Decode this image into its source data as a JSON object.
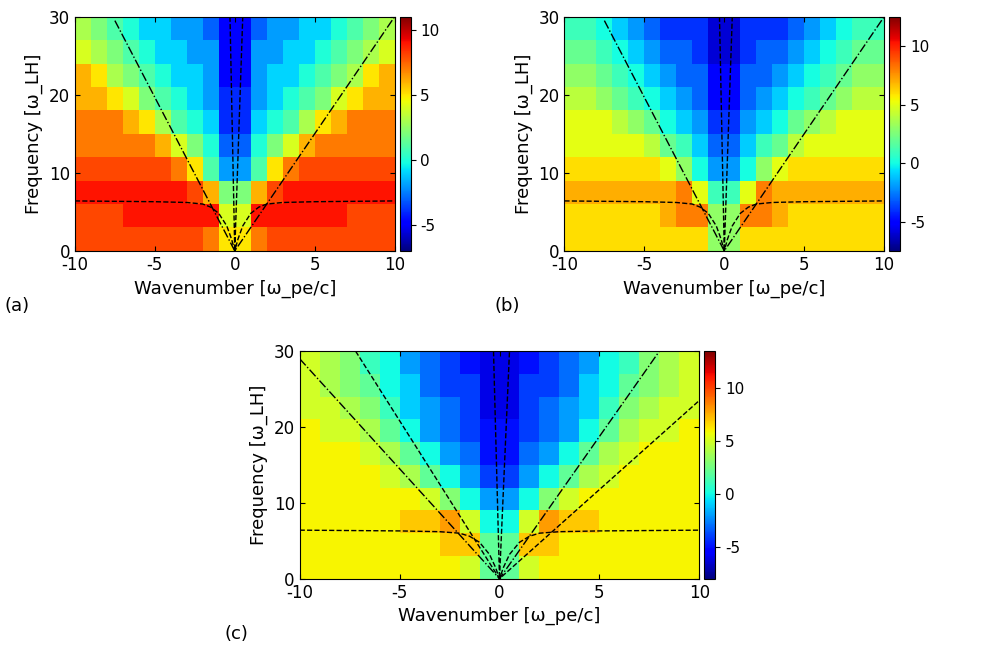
{
  "chart_data": [
    {
      "type": "heatmap",
      "panel_label": "(a)",
      "xlabel": "Wavenumber [ω_pe/c]",
      "ylabel": "Frequency [ω_LH]",
      "xlim": [
        -10,
        10
      ],
      "ylim": [
        0,
        30
      ],
      "xticks": [
        -10,
        -5,
        0,
        5,
        10
      ],
      "yticks": [
        0,
        10,
        20,
        30
      ],
      "x_edges": [
        -10,
        -9,
        -8,
        -7,
        -6,
        -5,
        -4,
        -3,
        -2,
        -1,
        0,
        1,
        2,
        3,
        4,
        5,
        6,
        7,
        8,
        9,
        10
      ],
      "y_edges": [
        0,
        3,
        6,
        9,
        12,
        15,
        18,
        21,
        24,
        27,
        30
      ],
      "cells": [
        [
          8,
          8,
          8,
          8,
          8,
          8,
          8,
          8,
          7,
          5,
          5,
          7,
          8,
          8,
          8,
          8,
          8,
          8,
          8,
          8
        ],
        [
          8,
          8,
          8,
          9,
          9,
          9,
          9,
          9,
          9,
          4,
          4,
          9,
          9,
          9,
          9,
          9,
          9,
          8,
          8,
          8
        ],
        [
          9,
          9,
          9,
          9,
          9,
          9,
          9,
          8,
          6,
          2,
          2,
          6,
          8,
          9,
          9,
          9,
          9,
          9,
          9,
          9
        ],
        [
          8,
          8,
          8,
          8,
          8,
          8,
          7,
          5,
          1,
          -2,
          -2,
          1,
          5,
          7,
          8,
          8,
          8,
          8,
          8,
          8
        ],
        [
          7,
          7,
          7,
          7,
          7,
          6,
          4,
          2,
          0,
          -3,
          -3,
          0,
          2,
          4,
          6,
          7,
          7,
          7,
          7,
          7
        ],
        [
          7,
          7,
          7,
          6,
          5,
          3,
          1,
          0,
          -1,
          -4,
          -4,
          -1,
          0,
          1,
          3,
          5,
          6,
          7,
          7,
          7
        ],
        [
          6,
          6,
          5,
          4,
          2,
          1,
          0,
          -1,
          -2,
          -4,
          -4,
          -2,
          -1,
          0,
          1,
          2,
          4,
          5,
          6,
          6
        ],
        [
          6,
          5,
          3,
          2,
          1,
          0,
          -1,
          -1,
          -2,
          -5,
          -5,
          -2,
          -1,
          -1,
          0,
          1,
          2,
          3,
          5,
          6
        ],
        [
          4,
          3,
          2,
          1,
          0,
          -1,
          -1,
          -2,
          -2,
          -5,
          -5,
          -2,
          -2,
          -1,
          -1,
          0,
          1,
          2,
          3,
          4
        ],
        [
          3,
          2,
          1,
          0,
          -1,
          -1,
          -2,
          -2,
          -3,
          -5,
          -5,
          -3,
          -2,
          -2,
          -1,
          -1,
          0,
          1,
          2,
          3
        ]
      ],
      "colorbar": {
        "range": [
          -7,
          11
        ],
        "ticks": [
          -5,
          0,
          5,
          10
        ]
      },
      "series": [
        {
          "color": "#000000",
          "line_style": "dashed",
          "x": [
            -10,
            -5,
            -3,
            -2,
            -1.5,
            -1,
            -0.5,
            -0.2,
            0,
            0.2,
            0.5,
            1,
            1.5,
            2,
            3,
            5,
            10
          ],
          "values": [
            6.4,
            6.3,
            6.2,
            6.0,
            5.6,
            4.8,
            3.2,
            1.5,
            0,
            1.5,
            3.2,
            4.8,
            5.6,
            6.0,
            6.2,
            6.3,
            6.4
          ]
        },
        {
          "color": "#000000",
          "line_style": "dashdot",
          "x": [
            -7.5,
            0,
            10
          ],
          "values": [
            29.5,
            0,
            30
          ]
        },
        {
          "color": "#000000",
          "line_style": "dashed",
          "x": [
            -0.3,
            0,
            0.5
          ],
          "values": [
            30,
            0,
            30
          ]
        }
      ]
    },
    {
      "type": "heatmap",
      "panel_label": "(b)",
      "xlabel": "Wavenumber [ω_pe/c]",
      "ylabel": "Frequency [ω_LH]",
      "xlim": [
        -10,
        10
      ],
      "ylim": [
        0,
        30
      ],
      "xticks": [
        -10,
        -5,
        0,
        5,
        10
      ],
      "yticks": [
        0,
        10,
        20,
        30
      ],
      "x_edges": [
        -10,
        -9,
        -8,
        -7,
        -6,
        -5,
        -4,
        -3,
        -2,
        -1,
        0,
        1,
        2,
        3,
        4,
        5,
        6,
        7,
        8,
        9,
        10
      ],
      "y_edges": [
        0,
        3,
        6,
        9,
        12,
        15,
        18,
        21,
        24,
        27,
        30
      ],
      "cells": [
        [
          6,
          6,
          6,
          6,
          6,
          6,
          6,
          6,
          6,
          3,
          3,
          6,
          6,
          6,
          6,
          6,
          6,
          6,
          6,
          6
        ],
        [
          6,
          6,
          6,
          6,
          6,
          6,
          7,
          8,
          8,
          3,
          3,
          8,
          8,
          7,
          6,
          6,
          6,
          6,
          6,
          6
        ],
        [
          7,
          7,
          7,
          7,
          7,
          7,
          7,
          8,
          5,
          1,
          1,
          5,
          8,
          7,
          7,
          7,
          7,
          7,
          7,
          7
        ],
        [
          6,
          6,
          6,
          6,
          6,
          6,
          5,
          3,
          0,
          -2,
          -2,
          0,
          3,
          5,
          6,
          6,
          6,
          6,
          6,
          6
        ],
        [
          5,
          5,
          5,
          5,
          5,
          4,
          2,
          1,
          -1,
          -3,
          -3,
          -1,
          1,
          2,
          4,
          5,
          5,
          5,
          5,
          5
        ],
        [
          5,
          5,
          5,
          4,
          3,
          2,
          0,
          -1,
          -2,
          -4,
          -4,
          -2,
          -1,
          0,
          2,
          3,
          4,
          5,
          5,
          5
        ],
        [
          4,
          4,
          3,
          2,
          1,
          0,
          -1,
          -2,
          -3,
          -5,
          -5,
          -3,
          -2,
          -1,
          0,
          1,
          2,
          3,
          4,
          4
        ],
        [
          3,
          3,
          2,
          1,
          0,
          -1,
          -2,
          -3,
          -3,
          -5,
          -5,
          -3,
          -3,
          -2,
          -1,
          0,
          1,
          2,
          3,
          3
        ],
        [
          2,
          2,
          1,
          0,
          -1,
          -2,
          -3,
          -3,
          -4,
          -6,
          -6,
          -4,
          -3,
          -3,
          -2,
          -1,
          0,
          1,
          2,
          2
        ],
        [
          1,
          1,
          0,
          -1,
          -2,
          -3,
          -4,
          -4,
          -4,
          -6,
          -6,
          -4,
          -4,
          -4,
          -3,
          -2,
          -1,
          0,
          1,
          1
        ]
      ],
      "colorbar": {
        "range": [
          -7.5,
          12.5
        ],
        "ticks": [
          -5,
          0,
          5,
          10
        ]
      },
      "series": [
        {
          "color": "#000000",
          "line_style": "dashed",
          "x": [
            -10,
            -5,
            -3,
            -2,
            -1.5,
            -1,
            -0.5,
            -0.2,
            0,
            0.2,
            0.5,
            1,
            1.5,
            2,
            3,
            5,
            10
          ],
          "values": [
            6.4,
            6.3,
            6.2,
            6.0,
            5.6,
            4.8,
            3.2,
            1.5,
            0,
            1.5,
            3.2,
            4.8,
            5.6,
            6.0,
            6.2,
            6.3,
            6.4
          ]
        },
        {
          "color": "#000000",
          "line_style": "dashdot",
          "x": [
            -7.5,
            0,
            10
          ],
          "values": [
            29.5,
            0,
            30
          ]
        },
        {
          "color": "#000000",
          "line_style": "dashed",
          "x": [
            -0.3,
            0,
            0.5
          ],
          "values": [
            30,
            0,
            30
          ]
        }
      ]
    },
    {
      "type": "heatmap",
      "panel_label": "(c)",
      "xlabel": "Wavenumber [ω_pe/c]",
      "ylabel": "Frequency [ω_LH]",
      "xlim": [
        -10,
        10
      ],
      "ylim": [
        0,
        30
      ],
      "xticks": [
        -10,
        -5,
        0,
        5,
        10
      ],
      "yticks": [
        0,
        10,
        20,
        30
      ],
      "x_edges": [
        -10,
        -9,
        -8,
        -7,
        -6,
        -5,
        -4,
        -3,
        -2,
        -1,
        0,
        1,
        2,
        3,
        4,
        5,
        6,
        7,
        8,
        9,
        10
      ],
      "y_edges": [
        0,
        3,
        6,
        9,
        12,
        15,
        18,
        21,
        24,
        27,
        30
      ],
      "cells": [
        [
          6,
          6,
          6,
          6,
          6,
          6,
          6,
          6,
          5,
          2,
          2,
          5,
          6,
          6,
          6,
          6,
          6,
          6,
          6,
          6
        ],
        [
          6,
          6,
          6,
          6,
          6,
          6,
          6,
          7,
          7,
          2,
          2,
          7,
          7,
          6,
          6,
          6,
          6,
          6,
          6,
          6
        ],
        [
          6,
          6,
          6,
          6,
          6,
          7,
          7,
          8,
          5,
          0,
          0,
          5,
          8,
          7,
          7,
          6,
          6,
          6,
          6,
          6
        ],
        [
          6,
          6,
          6,
          6,
          6,
          6,
          5,
          3,
          0,
          -2,
          -2,
          0,
          3,
          5,
          6,
          6,
          6,
          6,
          6,
          6
        ],
        [
          6,
          6,
          6,
          6,
          5,
          4,
          2,
          0,
          -2,
          -4,
          -4,
          -2,
          0,
          2,
          4,
          5,
          6,
          6,
          6,
          6
        ],
        [
          6,
          6,
          6,
          5,
          4,
          2,
          0,
          -2,
          -3,
          -5,
          -5,
          -3,
          -2,
          0,
          2,
          4,
          5,
          6,
          6,
          6
        ],
        [
          6,
          5,
          5,
          4,
          2,
          0,
          -2,
          -3,
          -4,
          -5,
          -5,
          -4,
          -3,
          -2,
          0,
          2,
          4,
          5,
          5,
          6
        ],
        [
          5,
          5,
          4,
          3,
          1,
          -1,
          -2,
          -3,
          -4,
          -6,
          -6,
          -4,
          -3,
          -2,
          -1,
          1,
          3,
          4,
          5,
          5
        ],
        [
          5,
          4,
          3,
          2,
          0,
          -1,
          -3,
          -4,
          -4,
          -6,
          -6,
          -4,
          -4,
          -3,
          -1,
          0,
          2,
          3,
          4,
          5
        ],
        [
          5,
          4,
          3,
          1,
          0,
          -2,
          -3,
          -4,
          -5,
          -6,
          -6,
          -5,
          -4,
          -3,
          -2,
          0,
          1,
          3,
          4,
          5
        ]
      ],
      "colorbar": {
        "range": [
          -8,
          13.5
        ],
        "ticks": [
          -5,
          0,
          5,
          10
        ]
      },
      "series": [
        {
          "color": "#000000",
          "line_style": "dashed",
          "x": [
            -10,
            -5,
            -3,
            -2,
            -1.5,
            -1,
            -0.5,
            -0.2,
            0,
            0.2,
            0.5,
            1,
            1.5,
            2,
            3,
            5,
            10
          ],
          "values": [
            6.4,
            6.3,
            6.2,
            6.0,
            5.6,
            4.8,
            3.2,
            1.5,
            0,
            1.5,
            3.2,
            4.8,
            5.6,
            6.0,
            6.2,
            6.3,
            6.4
          ]
        },
        {
          "color": "#000000",
          "line_style": "dashdot",
          "x": [
            -10,
            0,
            8
          ],
          "values": [
            29,
            0,
            30
          ]
        },
        {
          "color": "#000000",
          "line_style": "dashed",
          "x": [
            -7.2,
            0,
            10
          ],
          "values": [
            30,
            0,
            23.5
          ]
        },
        {
          "color": "#000000",
          "line_style": "dashed",
          "x": [
            -0.3,
            0,
            0.5
          ],
          "values": [
            30,
            0,
            30
          ]
        }
      ]
    }
  ]
}
